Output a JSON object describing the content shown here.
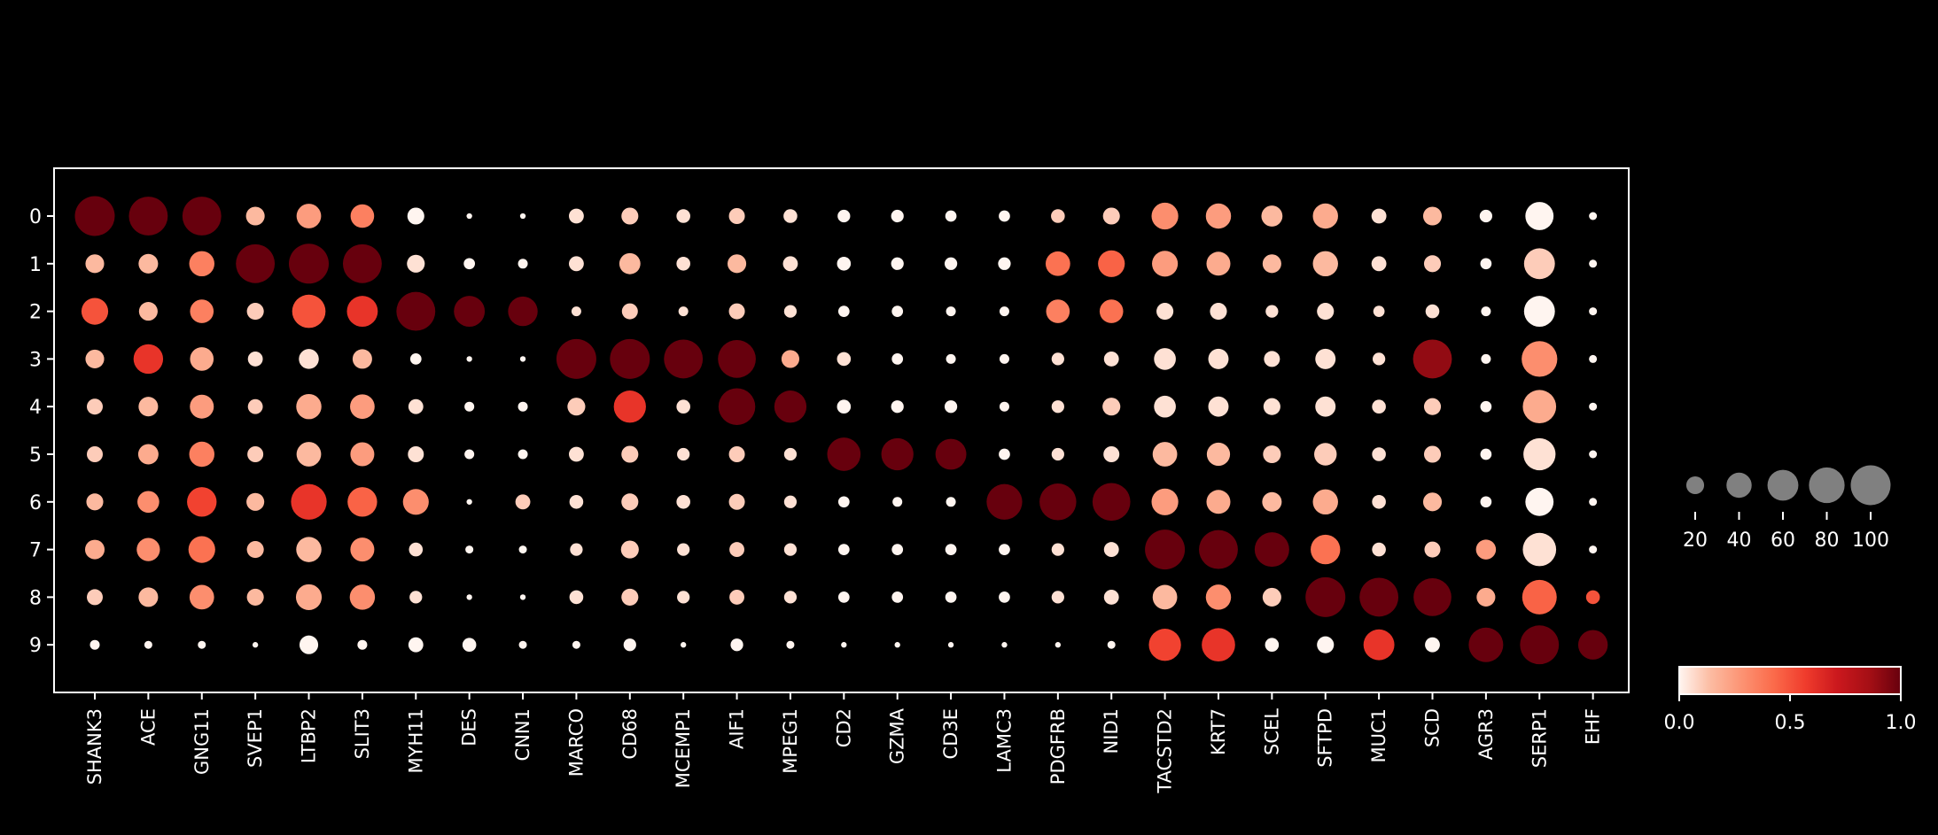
{
  "chart_data": {
    "type": "dotplot",
    "genes": [
      "SHANK3",
      "ACE",
      "GNG11",
      "SVEP1",
      "LTBP2",
      "SLIT3",
      "MYH11",
      "DES",
      "CNN1",
      "MARCO",
      "CD68",
      "MCEMP1",
      "AIF1",
      "MPEG1",
      "CD2",
      "GZMA",
      "CD3E",
      "LAMC3",
      "PDGFRB",
      "NID1",
      "TACSTD2",
      "KRT7",
      "SCEL",
      "SFTPD",
      "MUC1",
      "SCD",
      "AGR3",
      "SERP1",
      "EHF"
    ],
    "clusters": [
      "0",
      "1",
      "2",
      "3",
      "4",
      "5",
      "6",
      "7",
      "8",
      "9"
    ],
    "fraction": [
      [
        100,
        95,
        95,
        22,
        38,
        35,
        18,
        2,
        2,
        14,
        18,
        12,
        16,
        12,
        10,
        10,
        8,
        8,
        12,
        18,
        45,
        40,
        28,
        40,
        14,
        22,
        10,
        50,
        4
      ],
      [
        22,
        24,
        40,
        95,
        100,
        95,
        20,
        8,
        6,
        14,
        28,
        12,
        22,
        14,
        12,
        10,
        10,
        10,
        38,
        45,
        42,
        36,
        22,
        40,
        14,
        18,
        8,
        60,
        4
      ],
      [
        45,
        22,
        35,
        18,
        70,
        60,
        95,
        60,
        55,
        6,
        16,
        6,
        16,
        10,
        8,
        8,
        6,
        6,
        35,
        35,
        18,
        18,
        10,
        18,
        8,
        12,
        6,
        60,
        4
      ],
      [
        22,
        55,
        35,
        14,
        25,
        24,
        8,
        2,
        2,
        100,
        100,
        95,
        90,
        20,
        12,
        8,
        6,
        6,
        10,
        14,
        30,
        26,
        16,
        26,
        10,
        95,
        6,
        80,
        4
      ],
      [
        16,
        24,
        36,
        14,
        40,
        38,
        14,
        6,
        6,
        20,
        65,
        12,
        85,
        65,
        12,
        10,
        10,
        6,
        10,
        20,
        30,
        26,
        18,
        26,
        12,
        18,
        8,
        70,
        4
      ],
      [
        16,
        26,
        40,
        16,
        38,
        36,
        16,
        6,
        6,
        14,
        18,
        10,
        16,
        10,
        70,
        65,
        60,
        8,
        10,
        16,
        38,
        34,
        20,
        32,
        12,
        18,
        8,
        65,
        4
      ],
      [
        18,
        30,
        55,
        20,
        80,
        55,
        42,
        2,
        14,
        12,
        18,
        12,
        16,
        10,
        8,
        6,
        6,
        80,
        85,
        90,
        45,
        36,
        24,
        40,
        12,
        22,
        8,
        50,
        4
      ],
      [
        24,
        34,
        45,
        18,
        40,
        36,
        12,
        4,
        4,
        10,
        20,
        10,
        14,
        10,
        8,
        8,
        8,
        8,
        10,
        14,
        100,
        95,
        75,
        55,
        12,
        16,
        25,
        70,
        4
      ],
      [
        16,
        24,
        38,
        18,
        42,
        40,
        10,
        2,
        2,
        12,
        18,
        10,
        14,
        10,
        8,
        8,
        8,
        8,
        10,
        14,
        38,
        40,
        22,
        100,
        95,
        90,
        22,
        75,
        12
      ],
      [
        6,
        4,
        4,
        2,
        22,
        6,
        14,
        12,
        4,
        4,
        10,
        2,
        10,
        4,
        2,
        2,
        2,
        2,
        2,
        4,
        65,
        70,
        12,
        18,
        60,
        14,
        75,
        95,
        55
      ]
    ],
    "mean_expression": [
      [
        1.0,
        1.0,
        1.0,
        0.15,
        0.25,
        0.35,
        0.0,
        0.0,
        0.0,
        0.05,
        0.1,
        0.05,
        0.1,
        0.05,
        0.0,
        0.0,
        0.0,
        0.0,
        0.1,
        0.1,
        0.3,
        0.25,
        0.15,
        0.2,
        0.05,
        0.15,
        0.0,
        0.0,
        0.0
      ],
      [
        0.15,
        0.15,
        0.35,
        1.0,
        1.0,
        1.0,
        0.05,
        0.0,
        0.0,
        0.05,
        0.15,
        0.05,
        0.15,
        0.05,
        0.0,
        0.0,
        0.0,
        0.0,
        0.4,
        0.45,
        0.25,
        0.2,
        0.15,
        0.15,
        0.05,
        0.1,
        0.0,
        0.1,
        0.0
      ],
      [
        0.5,
        0.15,
        0.35,
        0.1,
        0.5,
        0.6,
        1.0,
        1.0,
        1.0,
        0.05,
        0.1,
        0.05,
        0.1,
        0.05,
        0.0,
        0.0,
        0.0,
        0.0,
        0.35,
        0.4,
        0.05,
        0.05,
        0.05,
        0.05,
        0.05,
        0.05,
        0.0,
        0.0,
        0.0
      ],
      [
        0.15,
        0.6,
        0.2,
        0.05,
        0.05,
        0.15,
        0.0,
        0.0,
        0.0,
        1.0,
        1.0,
        1.0,
        1.0,
        0.2,
        0.05,
        0.0,
        0.0,
        0.0,
        0.05,
        0.05,
        0.05,
        0.05,
        0.05,
        0.05,
        0.05,
        0.9,
        0.0,
        0.3,
        0.0
      ],
      [
        0.1,
        0.15,
        0.25,
        0.1,
        0.2,
        0.25,
        0.05,
        0.0,
        0.0,
        0.1,
        0.6,
        0.05,
        1.0,
        1.0,
        0.0,
        0.0,
        0.0,
        0.0,
        0.05,
        0.1,
        0.05,
        0.05,
        0.05,
        0.05,
        0.05,
        0.1,
        0.0,
        0.2,
        0.0
      ],
      [
        0.1,
        0.2,
        0.35,
        0.1,
        0.15,
        0.25,
        0.05,
        0.0,
        0.0,
        0.05,
        0.1,
        0.05,
        0.1,
        0.05,
        1.0,
        1.0,
        1.0,
        0.0,
        0.05,
        0.05,
        0.15,
        0.15,
        0.1,
        0.1,
        0.05,
        0.1,
        0.0,
        0.05,
        0.0
      ],
      [
        0.15,
        0.3,
        0.55,
        0.15,
        0.6,
        0.45,
        0.3,
        0.0,
        0.1,
        0.05,
        0.1,
        0.05,
        0.1,
        0.05,
        0.0,
        0.0,
        0.0,
        1.0,
        1.0,
        1.0,
        0.25,
        0.2,
        0.15,
        0.2,
        0.05,
        0.15,
        0.0,
        0.0,
        0.0
      ],
      [
        0.2,
        0.3,
        0.4,
        0.15,
        0.15,
        0.3,
        0.05,
        0.0,
        0.0,
        0.05,
        0.1,
        0.05,
        0.1,
        0.05,
        0.0,
        0.0,
        0.0,
        0.0,
        0.05,
        0.05,
        1.0,
        1.0,
        1.0,
        0.4,
        0.05,
        0.1,
        0.25,
        0.05,
        0.0
      ],
      [
        0.1,
        0.15,
        0.3,
        0.15,
        0.2,
        0.3,
        0.05,
        0.0,
        0.0,
        0.05,
        0.1,
        0.05,
        0.1,
        0.05,
        0.0,
        0.0,
        0.0,
        0.0,
        0.05,
        0.05,
        0.15,
        0.3,
        0.1,
        1.0,
        1.0,
        1.0,
        0.2,
        0.45,
        0.5
      ],
      [
        0.0,
        0.0,
        0.0,
        0.0,
        0.0,
        0.0,
        0.0,
        0.0,
        0.0,
        0.0,
        0.0,
        0.0,
        0.0,
        0.0,
        0.0,
        0.0,
        0.0,
        0.0,
        0.0,
        0.0,
        0.55,
        0.6,
        0.0,
        0.0,
        0.6,
        0.0,
        1.0,
        1.0,
        1.0
      ]
    ],
    "size_legend": {
      "ticks": [
        "20",
        "40",
        "60",
        "80",
        "100"
      ],
      "values": [
        20,
        40,
        60,
        80,
        100
      ]
    },
    "color_legend": {
      "ticks": [
        "0.0",
        "0.5",
        "1.0"
      ],
      "range": [
        0,
        1
      ],
      "colors": [
        "#fff5f0",
        "#fcbba1",
        "#fc9272",
        "#fb6a4a",
        "#ef3b2c",
        "#cb181d",
        "#a50f15",
        "#67000d"
      ]
    },
    "marker_color_legend": "#808080"
  },
  "colors": {
    "background": "#000000",
    "foreground": "#ffffff"
  }
}
